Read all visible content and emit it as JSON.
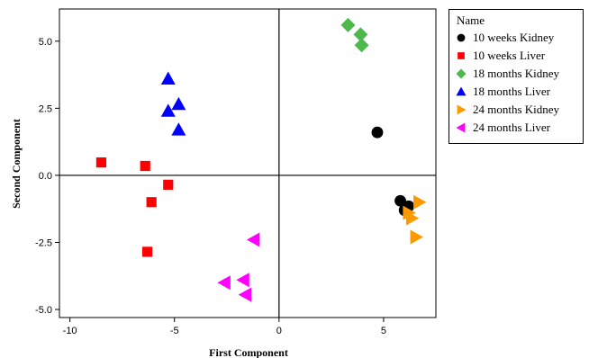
{
  "chart_data": {
    "type": "scatter",
    "title": "",
    "xlabel": "First Component",
    "ylabel": "Second Component",
    "xlim": [
      -10.5,
      7.5
    ],
    "ylim": [
      -5.3,
      6.2
    ],
    "xticks": [
      -10,
      -5,
      0,
      5
    ],
    "yticks": [
      -5.0,
      -2.5,
      0.0,
      2.5,
      5.0
    ],
    "ytick_labels": [
      "-5.0",
      "-2.5",
      "0.0",
      "2.5",
      "5.0"
    ],
    "xtick_labels": [
      "-10",
      "-5",
      "0",
      "5"
    ],
    "reference_lines": {
      "x": 0,
      "y": 0
    },
    "legend": {
      "title": "Name",
      "placement": "right"
    },
    "series": [
      {
        "name": "10 weeks Kidney",
        "marker": "circle",
        "color": "#000000",
        "points": [
          [
            4.7,
            1.6
          ],
          [
            5.8,
            -0.95
          ],
          [
            6.2,
            -1.15
          ],
          [
            6.0,
            -1.3
          ]
        ]
      },
      {
        "name": "10 weeks Liver",
        "marker": "square",
        "color": "#ff0000",
        "points": [
          [
            -8.5,
            0.48
          ],
          [
            -6.4,
            0.35
          ],
          [
            -5.3,
            -0.35
          ],
          [
            -6.1,
            -1.0
          ],
          [
            -6.3,
            -2.85
          ]
        ]
      },
      {
        "name": "18 months  Kidney",
        "marker": "diamond",
        "color": "#4db84d",
        "points": [
          [
            3.3,
            5.6
          ],
          [
            3.9,
            5.25
          ],
          [
            3.95,
            4.85
          ]
        ]
      },
      {
        "name": "18 months Liver",
        "marker": "triangle-up",
        "color": "#0000ff",
        "points": [
          [
            -5.3,
            3.6
          ],
          [
            -4.8,
            2.65
          ],
          [
            -5.3,
            2.4
          ],
          [
            -4.8,
            1.7
          ]
        ]
      },
      {
        "name": "24 months  Kidney",
        "marker": "triangle-right",
        "color": "#ff9900",
        "points": [
          [
            6.7,
            -1.0
          ],
          [
            6.2,
            -1.4
          ],
          [
            6.35,
            -1.6
          ],
          [
            6.55,
            -2.3
          ]
        ]
      },
      {
        "name": "24 months Liver",
        "marker": "triangle-left",
        "color": "#ff00ff",
        "points": [
          [
            -1.2,
            -2.4
          ],
          [
            -2.6,
            -4.0
          ],
          [
            -1.7,
            -3.9
          ],
          [
            -1.6,
            -4.45
          ]
        ]
      }
    ]
  }
}
